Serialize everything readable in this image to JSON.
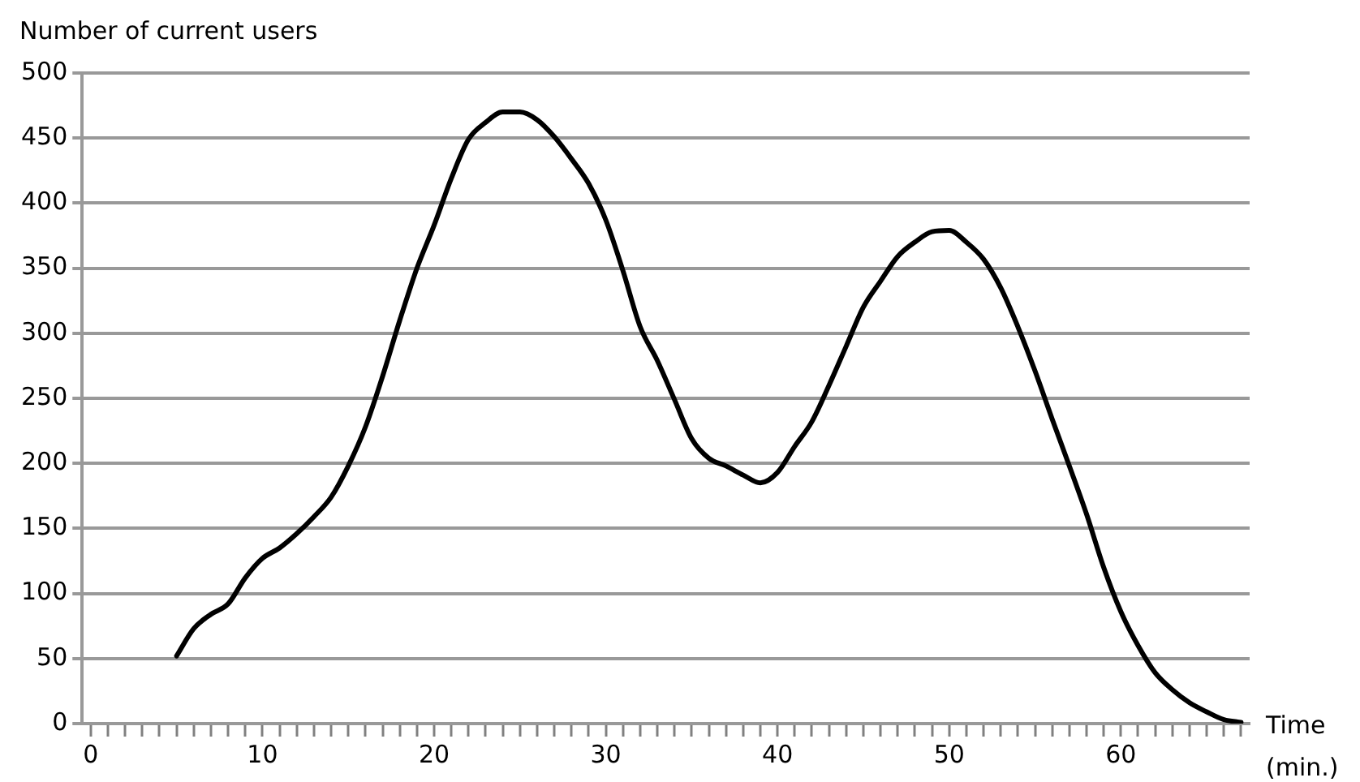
{
  "chart_data": {
    "type": "line",
    "ylabel": "Number of current users",
    "xlabel": "Time (min.)",
    "x": [
      5,
      6,
      7,
      8,
      9,
      10,
      11,
      12,
      13,
      14,
      15,
      16,
      17,
      18,
      19,
      20,
      21,
      22,
      23,
      24,
      25,
      26,
      27,
      28,
      29,
      30,
      31,
      32,
      33,
      34,
      35,
      36,
      37,
      38,
      39,
      40,
      41,
      42,
      43,
      44,
      45,
      46,
      47,
      48,
      49,
      50,
      51,
      52,
      53,
      54,
      55,
      56,
      57,
      58,
      59,
      60,
      61,
      62,
      63,
      64,
      65,
      66,
      67
    ],
    "series": [
      {
        "color": "#000000",
        "values": [
          52,
          73,
          84,
          92,
          112,
          127,
          135,
          146,
          159,
          174,
          198,
          228,
          267,
          310,
          350,
          383,
          419,
          449,
          462,
          470,
          470,
          464,
          451,
          434,
          415,
          387,
          348,
          305,
          279,
          249,
          219,
          204,
          198,
          191,
          185,
          193,
          213,
          232,
          260,
          290,
          320,
          340,
          359,
          370,
          378,
          379,
          370,
          357,
          335,
          305,
          271,
          234,
          198,
          161,
          120,
          86,
          60,
          39,
          26,
          16,
          9,
          3,
          1
        ]
      }
    ],
    "xlim": [
      -0.5,
      67.5
    ],
    "xticks": [
      0,
      {
        "value": 1,
        "label": null
      },
      {
        "value": 2,
        "label": null
      },
      {
        "value": 3,
        "label": null
      },
      {
        "value": 4,
        "label": null
      },
      {
        "value": 5,
        "label": null
      },
      {
        "value": 6,
        "label": null
      },
      {
        "value": 7,
        "label": null
      },
      {
        "value": 8,
        "label": null
      },
      {
        "value": 9,
        "label": null
      },
      10,
      {
        "value": 11,
        "label": null
      },
      {
        "value": 12,
        "label": null
      },
      {
        "value": 13,
        "label": null
      },
      {
        "value": 14,
        "label": null
      },
      {
        "value": 15,
        "label": null
      },
      {
        "value": 16,
        "label": null
      },
      {
        "value": 17,
        "label": null
      },
      {
        "value": 18,
        "label": null
      },
      {
        "value": 19,
        "label": null
      },
      20,
      {
        "value": 21,
        "label": null
      },
      {
        "value": 22,
        "label": null
      },
      {
        "value": 23,
        "label": null
      },
      {
        "value": 24,
        "label": null
      },
      {
        "value": 25,
        "label": null
      },
      {
        "value": 26,
        "label": null
      },
      {
        "value": 27,
        "label": null
      },
      {
        "value": 28,
        "label": null
      },
      {
        "value": 29,
        "label": null
      },
      30,
      {
        "value": 31,
        "label": null
      },
      {
        "value": 32,
        "label": null
      },
      {
        "value": 33,
        "label": null
      },
      {
        "value": 34,
        "label": null
      },
      {
        "value": 35,
        "label": null
      },
      {
        "value": 36,
        "label": null
      },
      {
        "value": 37,
        "label": null
      },
      {
        "value": 38,
        "label": null
      },
      {
        "value": 39,
        "label": null
      },
      40,
      {
        "value": 41,
        "label": null
      },
      {
        "value": 42,
        "label": null
      },
      {
        "value": 43,
        "label": null
      },
      {
        "value": 44,
        "label": null
      },
      {
        "value": 45,
        "label": null
      },
      {
        "value": 46,
        "label": null
      },
      {
        "value": 47,
        "label": null
      },
      {
        "value": 48,
        "label": null
      },
      {
        "value": 49,
        "label": null
      },
      50,
      {
        "value": 51,
        "label": null
      },
      {
        "value": 52,
        "label": null
      },
      {
        "value": 53,
        "label": null
      },
      {
        "value": 54,
        "label": null
      },
      {
        "value": 55,
        "label": null
      },
      {
        "value": 56,
        "label": null
      },
      {
        "value": 57,
        "label": null
      },
      {
        "value": 58,
        "label": null
      },
      {
        "value": 59,
        "label": null
      },
      60,
      {
        "value": 61,
        "label": null
      },
      {
        "value": 62,
        "label": null
      },
      {
        "value": 63,
        "label": null
      },
      {
        "value": 64,
        "label": null
      },
      {
        "value": 65,
        "label": null
      },
      {
        "value": 66,
        "label": null
      },
      {
        "value": 67,
        "label": null
      }
    ],
    "ylim": [
      0,
      500
    ],
    "yticks": [
      0,
      50,
      100,
      150,
      200,
      250,
      300,
      350,
      400,
      450,
      500
    ],
    "grid": "y",
    "legend": false,
    "marker": "none",
    "line_style": "solid"
  }
}
